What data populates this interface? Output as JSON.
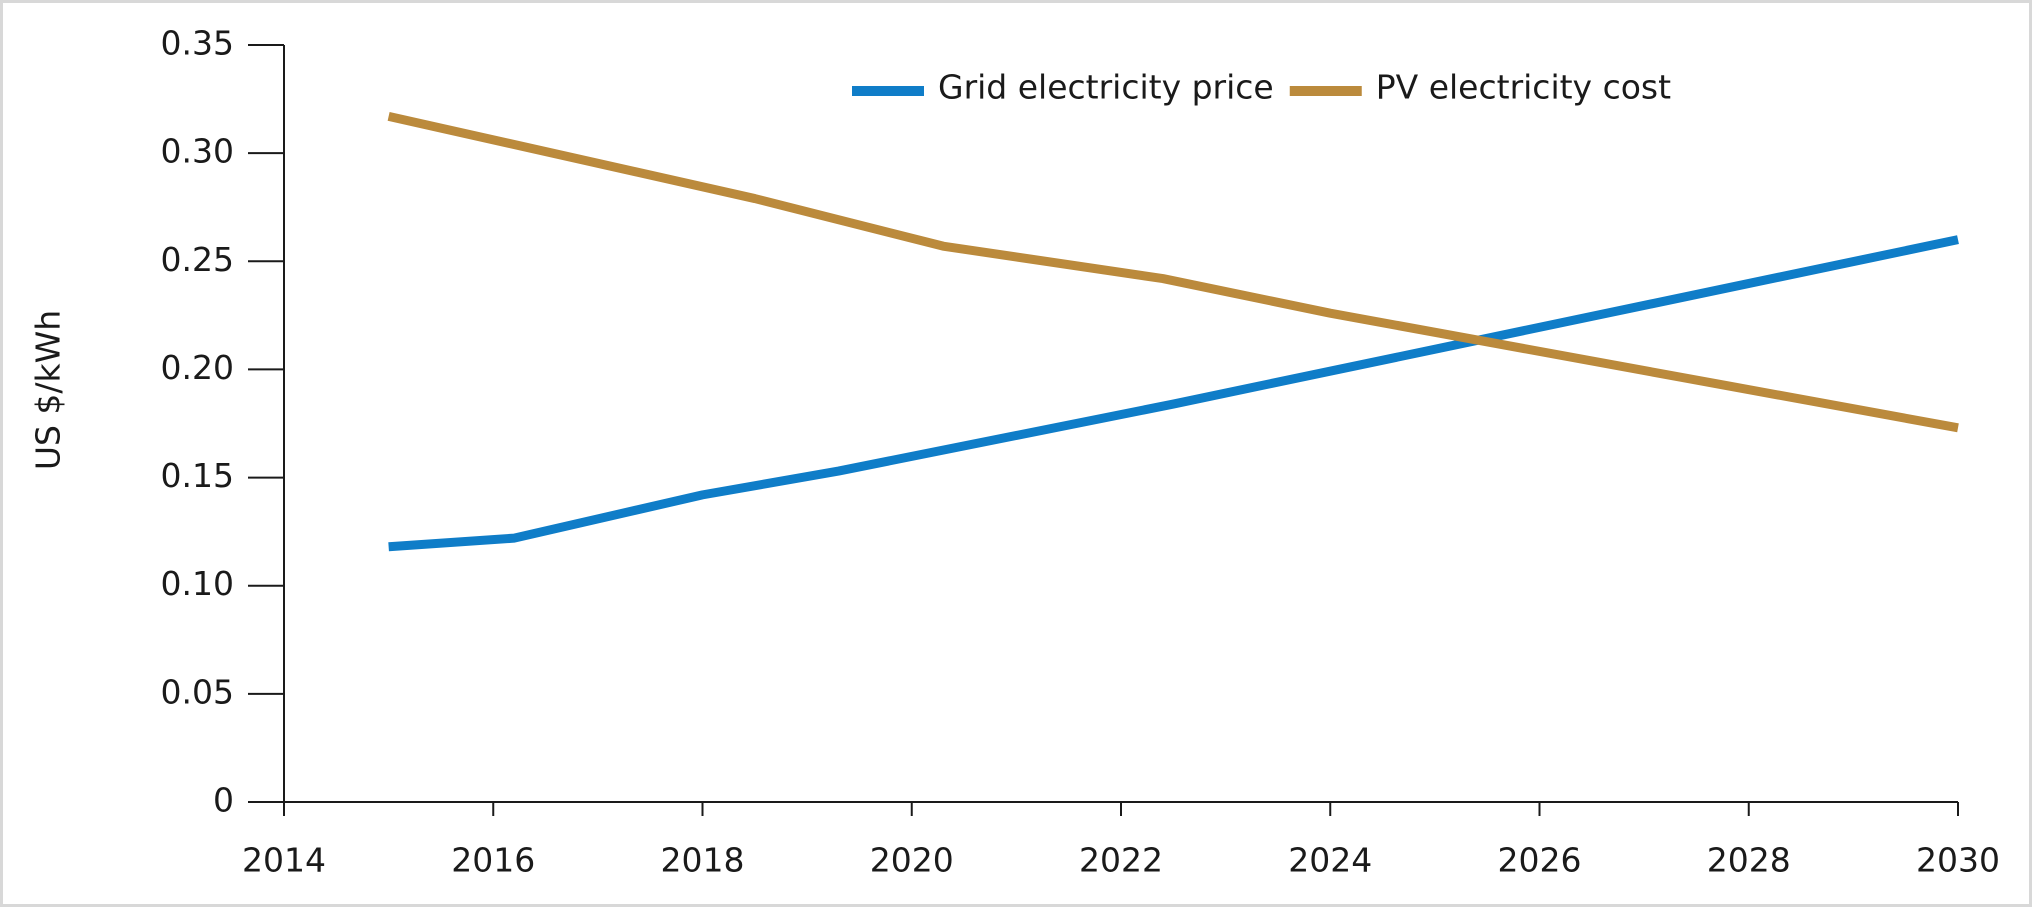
{
  "chart_data": {
    "type": "line",
    "y_label": "US $/kWh",
    "series": [
      {
        "name": "Grid electricity price",
        "color": "#0f7dc8",
        "x": [
          2015,
          2016.2,
          2018,
          2019.3,
          2022.5,
          2030
        ],
        "values": [
          0.118,
          0.122,
          0.142,
          0.153,
          0.184,
          0.26
        ]
      },
      {
        "name": "PV electricity cost",
        "color": "#bb8a3c",
        "x": [
          2015,
          2018.5,
          2020.3,
          2022.4,
          2024,
          2030
        ],
        "values": [
          0.317,
          0.279,
          0.257,
          0.242,
          0.226,
          0.173
        ]
      }
    ],
    "xlim": [
      2014,
      2030
    ],
    "xticks": [
      2014,
      2016,
      2018,
      2020,
      2022,
      2024,
      2026,
      2028,
      2030
    ],
    "ylim": [
      0,
      0.35
    ],
    "yticks": [
      0,
      0.05,
      {
        "value": 0.1,
        "label": "0.10"
      },
      0.15,
      {
        "value": 0.2,
        "label": "0.20"
      },
      0.25,
      {
        "value": 0.3,
        "label": "0.30"
      },
      0.35
    ],
    "legend": "top-right"
  }
}
